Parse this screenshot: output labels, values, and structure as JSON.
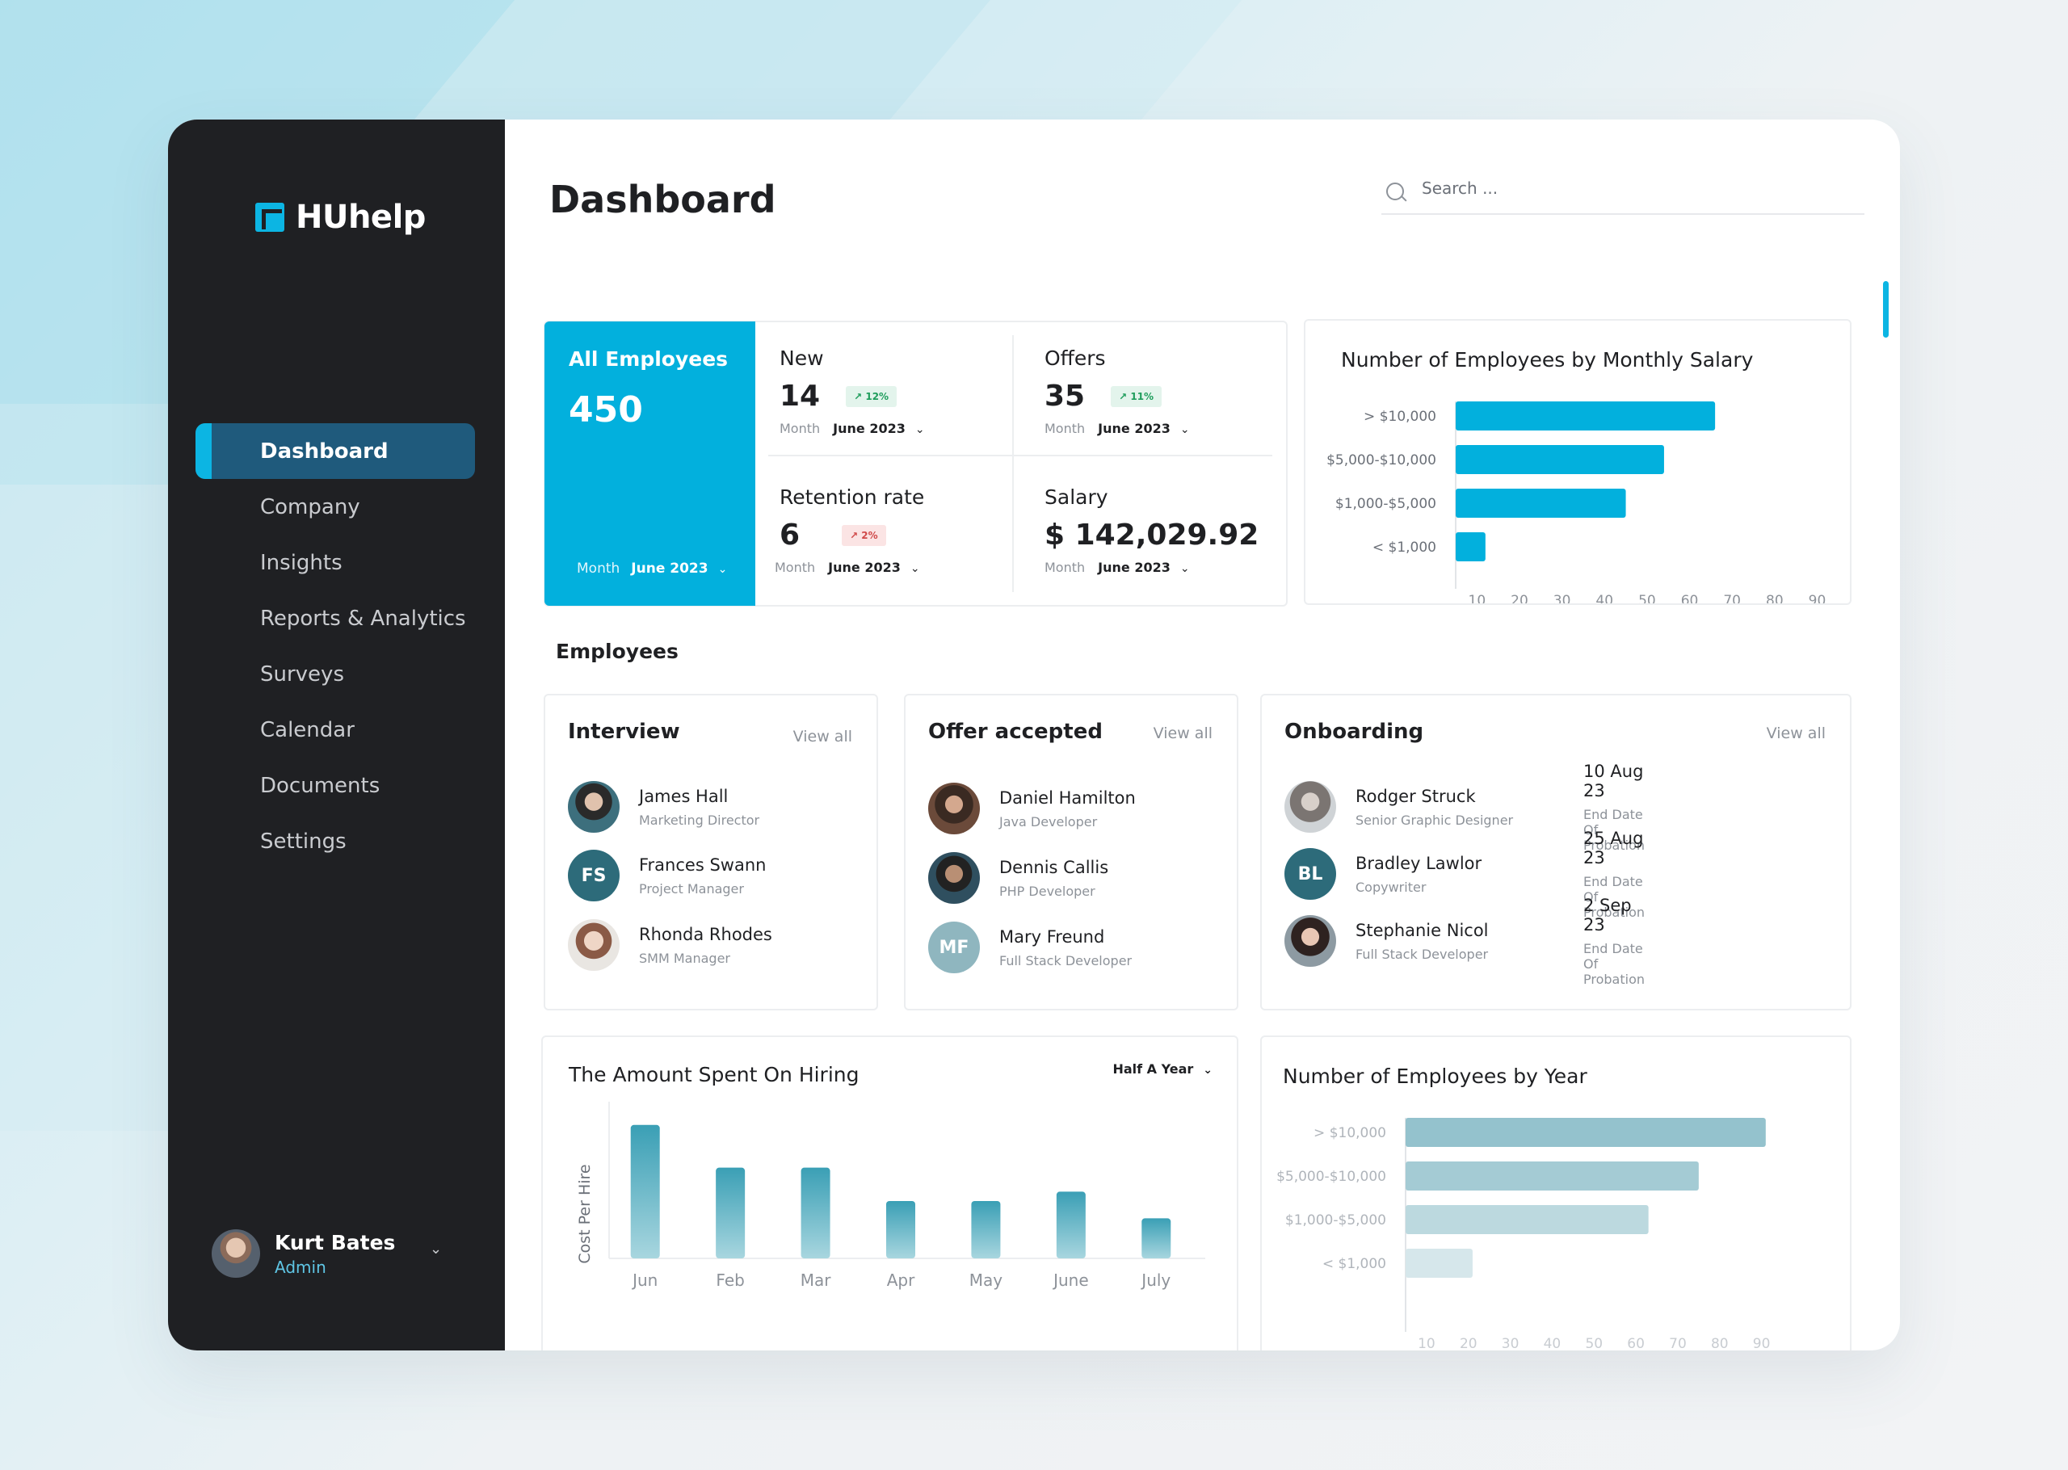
{
  "app": {
    "name": "HUhelp"
  },
  "page": {
    "title": "Dashboard"
  },
  "search": {
    "placeholder": "Search ..."
  },
  "nav": [
    {
      "label": "Dashboard",
      "active": true
    },
    {
      "label": "Company"
    },
    {
      "label": "Insights"
    },
    {
      "label": "Reports & Analytics"
    },
    {
      "label": "Surveys"
    },
    {
      "label": "Calendar"
    },
    {
      "label": "Documents"
    },
    {
      "label": "Settings"
    }
  ],
  "user": {
    "name": "Kurt Bates",
    "role": "Admin"
  },
  "stats": {
    "all_employees": {
      "label": "All Employees",
      "value": "450",
      "month_label": "Month",
      "month": "June 2023"
    },
    "new": {
      "label": "New",
      "value": "14",
      "badge": "12%",
      "month_label": "Month",
      "month": "June 2023"
    },
    "offers": {
      "label": "Offers",
      "value": "35",
      "badge": "11%",
      "month_label": "Month",
      "month": "June 2023"
    },
    "retention": {
      "label": "Retention rate",
      "value": "6",
      "badge": "2%",
      "month_label": "Month",
      "month": "June 2023"
    },
    "salary": {
      "label": "Salary",
      "value": "$ 142,029.92",
      "month_label": "Month",
      "month": "June 2023"
    }
  },
  "employees_section": {
    "title": "Employees"
  },
  "interview": {
    "title": "Interview",
    "view_all": "View all",
    "people": [
      {
        "name": "James Hall",
        "role": "Marketing Director",
        "initials": ""
      },
      {
        "name": "Frances Swann",
        "role": "Project Manager",
        "initials": "FS"
      },
      {
        "name": "Rhonda Rhodes",
        "role": "SMM Manager",
        "initials": ""
      }
    ]
  },
  "offer_accepted": {
    "title": "Offer accepted",
    "view_all": "View all",
    "people": [
      {
        "name": "Daniel Hamilton",
        "role": "Java Developer",
        "initials": ""
      },
      {
        "name": "Dennis Callis",
        "role": "PHP Developer",
        "initials": ""
      },
      {
        "name": "Mary Freund",
        "role": "Full Stack Developer",
        "initials": "MF"
      }
    ]
  },
  "onboarding": {
    "title": "Onboarding",
    "view_all": "View all",
    "people": [
      {
        "name": "Rodger Struck",
        "role": "Senior Graphic Designer",
        "initials": "",
        "date": "10 Aug 23",
        "date_label": "End Date Of Probation"
      },
      {
        "name": "Bradley Lawlor",
        "role": "Copywriter",
        "initials": "BL",
        "date": "25 Aug 23",
        "date_label": "End Date Of Probation"
      },
      {
        "name": "Stephanie Nicol",
        "role": "Full Stack Developer",
        "initials": "",
        "date": "2 Sep 23",
        "date_label": "End Date Of Probation"
      }
    ]
  },
  "hiring": {
    "select": "Half A Year"
  },
  "chart_data": [
    {
      "type": "bar",
      "orientation": "horizontal",
      "title": "Number of Employees by Monthly Salary",
      "categories": [
        "> $10,000",
        "$5,000-$10,000",
        "$1,000-$5,000",
        "< $1,000"
      ],
      "values": [
        66,
        54,
        45,
        12
      ],
      "x_ticks": [
        10,
        20,
        30,
        40,
        50,
        60,
        70,
        80,
        90
      ],
      "xlim": [
        5,
        92
      ],
      "color": "#02b0dd"
    },
    {
      "type": "bar",
      "title": "The Amount Spent On Hiring",
      "ylabel": "Cost Per Hire",
      "categories": [
        "Jun",
        "Feb",
        "Mar",
        "Apr",
        "May",
        "June",
        "July"
      ],
      "values": [
        100,
        68,
        68,
        43,
        43,
        50,
        30
      ],
      "ylim": [
        0,
        115
      ],
      "color": "#3fa3b8"
    },
    {
      "type": "bar",
      "orientation": "horizontal",
      "title": "Number of Employees by Year",
      "categories": [
        "> $10,000",
        "$5,000-$10,000",
        "$1,000-$5,000",
        "< $1,000"
      ],
      "values": [
        91,
        75,
        63,
        21
      ],
      "x_ticks": [
        10,
        20,
        30,
        40,
        50,
        60,
        70,
        80,
        90
      ],
      "xlim": [
        5,
        92
      ],
      "color": "#8ec0cc"
    }
  ]
}
